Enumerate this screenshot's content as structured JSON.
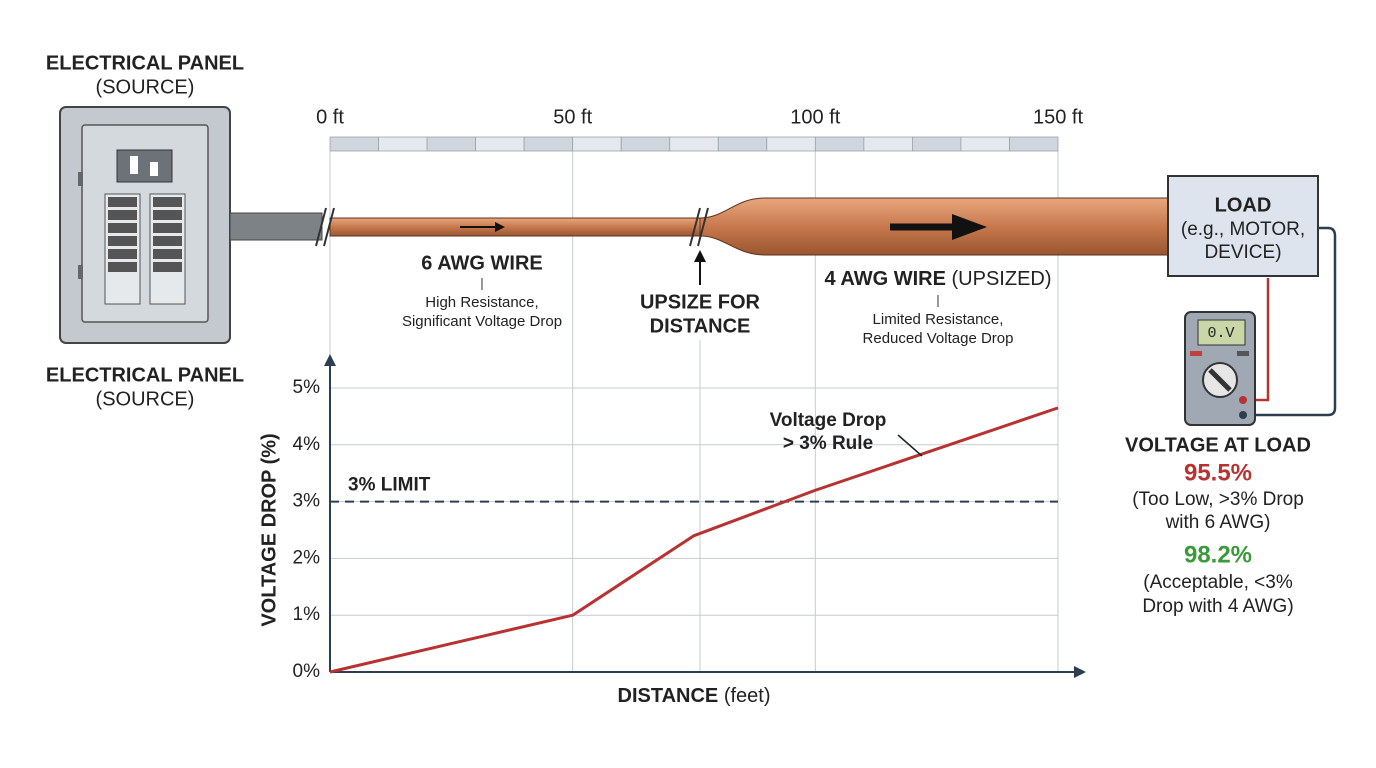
{
  "diagram": {
    "panel_top": {
      "title": "ELECTRICAL PANEL",
      "subtitle": "(SOURCE)"
    },
    "panel_bottom": {
      "title": "ELECTRICAL PANEL",
      "subtitle": "(SOURCE)"
    },
    "wire_6": {
      "title": "6 AWG WIRE",
      "lines": [
        "High Resistance,",
        "Significant Voltage Drop"
      ]
    },
    "upsize": [
      "UPSIZE FOR",
      "DISTANCE"
    ],
    "wire_4": {
      "title": "4 AWG WIRE",
      "title_note": "(UPSIZED)",
      "lines": [
        "Limited Resistance,",
        "Reduced Voltage Drop"
      ]
    },
    "load": [
      "LOAD",
      "(e.g., MOTOR,",
      "DEVICE)"
    ],
    "meter_display": "0.V",
    "voltage_at_load": {
      "title": "VOLTAGE AT LOAD",
      "low": {
        "value": "95.5%",
        "lines": [
          "(Too Low, >3% Drop",
          "with 6 AWG)"
        ]
      },
      "ok": {
        "value": "98.2%",
        "lines": [
          "(Acceptable, <3%",
          "Drop with 4 AWG)"
        ]
      }
    }
  },
  "chart_data": {
    "type": "line",
    "x_label": "DISTANCE",
    "x_label_unit": "(feet)",
    "y_label": "VOLTAGE DROP (%)",
    "x": [
      0,
      25,
      50,
      62.5,
      75,
      100,
      150
    ],
    "values": [
      0,
      0.5,
      1.0,
      1.7,
      2.4,
      3.2,
      4.65
    ],
    "color": "#b83232",
    "xlim": [
      0,
      150
    ],
    "xticks": [
      {
        "value": 0,
        "label": "0 ft"
      },
      {
        "value": 50,
        "label": "50 ft"
      },
      {
        "value": 100,
        "label": "100 ft"
      },
      {
        "value": 150,
        "label": "150 ft"
      }
    ],
    "ylim": [
      0,
      5
    ],
    "yticks": [
      {
        "value": 0,
        "label": "0%"
      },
      {
        "value": 1,
        "label": "1%"
      },
      {
        "value": 2,
        "label": "2%"
      },
      {
        "value": 3,
        "label": "3%"
      },
      {
        "value": 4,
        "label": "4%"
      },
      {
        "value": 5,
        "label": "5%"
      }
    ],
    "grid": true,
    "threshold": {
      "value": 3,
      "label": "3% LIMIT"
    },
    "annotation": [
      "Voltage Drop",
      "> 3% Rule"
    ]
  }
}
